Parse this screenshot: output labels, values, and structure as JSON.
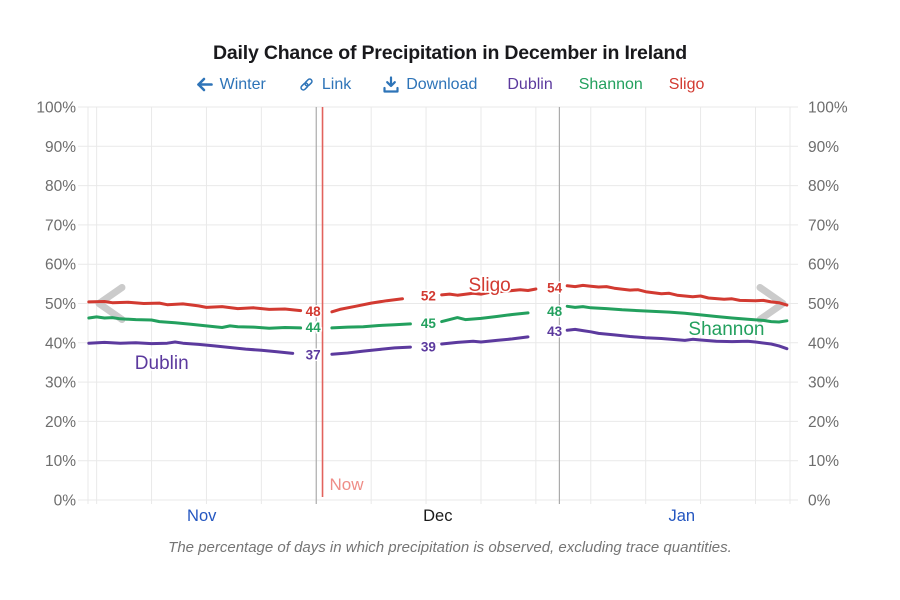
{
  "title": "Daily Chance of Precipitation in December in Ireland",
  "toolbar": {
    "back_label": "Winter",
    "link_label": "Link",
    "download_label": "Download"
  },
  "legend": [
    {
      "label": "Dublin",
      "color": "#5c3a9e"
    },
    {
      "label": "Shannon",
      "color": "#23a05e"
    },
    {
      "label": "Sligo",
      "color": "#d23a31"
    }
  ],
  "caption": "The percentage of days in which precipitation is observed, excluding trace quantities.",
  "colors": {
    "link_blue": "#2e74b8",
    "month_link_blue": "#2456c0",
    "month_current": "#1b1b1b",
    "now_label": "#ef8d87",
    "now_line": "#e2625d",
    "grid": "#e9e9e9",
    "month_divider": "#ababab",
    "axis_text": "#6d6d6d",
    "chevron": "#cbcbcb"
  },
  "chart_data": {
    "type": "line",
    "title": "Daily Chance of Precipitation in December in Ireland",
    "x_unit": "days relative to Dec 1",
    "xlim": [
      -29.1,
      60.4
    ],
    "ylim": [
      0,
      100
    ],
    "grid": true,
    "y_ticks": [
      {
        "value": 0,
        "label": "0%"
      },
      {
        "value": 10,
        "label": "10%"
      },
      {
        "value": 20,
        "label": "20%"
      },
      {
        "value": 30,
        "label": "30%"
      },
      {
        "value": 40,
        "label": "40%"
      },
      {
        "value": 50,
        "label": "50%"
      },
      {
        "value": 60,
        "label": "60%"
      },
      {
        "value": 70,
        "label": "70%"
      },
      {
        "value": 80,
        "label": "80%"
      },
      {
        "value": 90,
        "label": "90%"
      },
      {
        "value": 100,
        "label": "100%"
      }
    ],
    "week_gridline_days": [
      -28,
      -21,
      -14,
      -7,
      7,
      14,
      21,
      28,
      35,
      42,
      49,
      56
    ],
    "month_divider_days": [
      0,
      31
    ],
    "now": {
      "day": 0.8,
      "label": "Now"
    },
    "months": [
      {
        "label": "Nov",
        "center_day": -14.6,
        "is_link": true
      },
      {
        "label": "Dec",
        "center_day": 15.5,
        "is_link": false
      },
      {
        "label": "Jan",
        "center_day": 46.6,
        "is_link": true
      }
    ],
    "series": [
      {
        "name": "Sligo",
        "color": "#d23a31",
        "inline_label": {
          "text": "Sligo",
          "day": 22.1,
          "value": 53.2
        },
        "value_labels": [
          {
            "day": -0.4,
            "value": 48,
            "text": "48"
          },
          {
            "day": 14.3,
            "value": 52,
            "text": "52"
          },
          {
            "day": 30.4,
            "value": 54,
            "text": "54"
          }
        ],
        "points": [
          [
            -29,
            50.4
          ],
          [
            -27,
            50.5
          ],
          [
            -26,
            50.2
          ],
          [
            -24,
            50.3
          ],
          [
            -22,
            50.0
          ],
          [
            -20,
            50.1
          ],
          [
            -19,
            49.7
          ],
          [
            -17,
            49.9
          ],
          [
            -15,
            49.4
          ],
          [
            -14,
            49.0
          ],
          [
            -12,
            49.2
          ],
          [
            -10,
            48.7
          ],
          [
            -8,
            48.9
          ],
          [
            -6,
            48.5
          ],
          [
            -4,
            48.6
          ],
          [
            -2,
            48.2
          ],
          [
            -1,
            48.0
          ],
          [
            0,
            48.0
          ],
          [
            1,
            47.6
          ],
          [
            2,
            47.9
          ],
          [
            3,
            48.5
          ],
          [
            5,
            49.3
          ],
          [
            7,
            50.1
          ],
          [
            9,
            50.7
          ],
          [
            11,
            51.2
          ],
          [
            13,
            51.6
          ],
          [
            14,
            51.9
          ],
          [
            16,
            52.2
          ],
          [
            17,
            52.4
          ],
          [
            18,
            52.1
          ],
          [
            20,
            52.6
          ],
          [
            21,
            52.4
          ],
          [
            22,
            52.8
          ],
          [
            24,
            53.1
          ],
          [
            26,
            53.5
          ],
          [
            27,
            53.3
          ],
          [
            28,
            53.7
          ],
          [
            30,
            54.0
          ],
          [
            31,
            54.1
          ],
          [
            32,
            54.5
          ],
          [
            33,
            54.3
          ],
          [
            34,
            54.6
          ],
          [
            35,
            54.4
          ],
          [
            36,
            54.2
          ],
          [
            37,
            54.3
          ],
          [
            38,
            53.9
          ],
          [
            40,
            53.4
          ],
          [
            41,
            53.5
          ],
          [
            42,
            53.0
          ],
          [
            44,
            52.5
          ],
          [
            45,
            52.6
          ],
          [
            46,
            52.1
          ],
          [
            48,
            51.7
          ],
          [
            49,
            51.9
          ],
          [
            50,
            51.4
          ],
          [
            52,
            51.1
          ],
          [
            53,
            51.2
          ],
          [
            54,
            50.8
          ],
          [
            56,
            50.7
          ],
          [
            57,
            50.8
          ],
          [
            58,
            50.4
          ],
          [
            59,
            50.2
          ],
          [
            60,
            49.6
          ]
        ]
      },
      {
        "name": "Shannon",
        "color": "#23a05e",
        "inline_label": {
          "text": "Shannon",
          "day": 52.3,
          "value": 42.0
        },
        "value_labels": [
          {
            "day": -0.4,
            "value": 44,
            "text": "44"
          },
          {
            "day": 14.3,
            "value": 45,
            "text": "45"
          },
          {
            "day": 30.4,
            "value": 48,
            "text": "48"
          }
        ],
        "points": [
          [
            -29,
            46.3
          ],
          [
            -28,
            46.6
          ],
          [
            -27,
            46.3
          ],
          [
            -26,
            46.4
          ],
          [
            -25,
            46.1
          ],
          [
            -23,
            45.9
          ],
          [
            -21,
            45.8
          ],
          [
            -20,
            45.4
          ],
          [
            -18,
            45.1
          ],
          [
            -16,
            44.7
          ],
          [
            -14,
            44.3
          ],
          [
            -12,
            43.9
          ],
          [
            -11,
            44.3
          ],
          [
            -10,
            44.1
          ],
          [
            -8,
            44.0
          ],
          [
            -6,
            43.7
          ],
          [
            -4,
            43.9
          ],
          [
            -2,
            43.8
          ],
          [
            0,
            44.0
          ],
          [
            1,
            43.6
          ],
          [
            2,
            43.8
          ],
          [
            4,
            44.0
          ],
          [
            6,
            44.1
          ],
          [
            8,
            44.4
          ],
          [
            10,
            44.6
          ],
          [
            12,
            44.8
          ],
          [
            14,
            45.0
          ],
          [
            16,
            45.4
          ],
          [
            17,
            45.9
          ],
          [
            18,
            46.4
          ],
          [
            19,
            45.9
          ],
          [
            21,
            46.2
          ],
          [
            23,
            46.7
          ],
          [
            25,
            47.2
          ],
          [
            27,
            47.6
          ],
          [
            29,
            47.9
          ],
          [
            30,
            48.1
          ],
          [
            31,
            48.7
          ],
          [
            32,
            49.3
          ],
          [
            33,
            49.0
          ],
          [
            34,
            49.2
          ],
          [
            35,
            48.9
          ],
          [
            37,
            48.7
          ],
          [
            39,
            48.4
          ],
          [
            41,
            48.2
          ],
          [
            43,
            48.0
          ],
          [
            45,
            47.8
          ],
          [
            47,
            47.5
          ],
          [
            49,
            47.1
          ],
          [
            51,
            46.7
          ],
          [
            53,
            46.3
          ],
          [
            55,
            46.0
          ],
          [
            57,
            45.7
          ],
          [
            58,
            45.4
          ],
          [
            59,
            45.3
          ],
          [
            60,
            45.6
          ]
        ]
      },
      {
        "name": "Dublin",
        "color": "#5c3a9e",
        "inline_label": {
          "text": "Dublin",
          "day": -19.7,
          "value": 33.3
        },
        "value_labels": [
          {
            "day": -0.4,
            "value": 37,
            "text": "37"
          },
          {
            "day": 14.3,
            "value": 39,
            "text": "39"
          },
          {
            "day": 30.4,
            "value": 43,
            "text": "43"
          }
        ],
        "points": [
          [
            -29,
            39.9
          ],
          [
            -27,
            40.1
          ],
          [
            -25,
            39.9
          ],
          [
            -23,
            40.0
          ],
          [
            -21,
            39.8
          ],
          [
            -19,
            39.9
          ],
          [
            -18,
            40.2
          ],
          [
            -17,
            39.9
          ],
          [
            -15,
            39.6
          ],
          [
            -13,
            39.2
          ],
          [
            -11,
            38.8
          ],
          [
            -9,
            38.4
          ],
          [
            -7,
            38.1
          ],
          [
            -5,
            37.7
          ],
          [
            -3,
            37.3
          ],
          [
            -1,
            37.1
          ],
          [
            0,
            37.0
          ],
          [
            1,
            36.9
          ],
          [
            2,
            37.1
          ],
          [
            4,
            37.4
          ],
          [
            6,
            37.9
          ],
          [
            8,
            38.3
          ],
          [
            10,
            38.7
          ],
          [
            12,
            38.9
          ],
          [
            14,
            39.2
          ],
          [
            16,
            39.7
          ],
          [
            18,
            40.1
          ],
          [
            20,
            40.4
          ],
          [
            21,
            40.2
          ],
          [
            23,
            40.6
          ],
          [
            25,
            41.0
          ],
          [
            27,
            41.5
          ],
          [
            29,
            42.1
          ],
          [
            30,
            42.5
          ],
          [
            31,
            43.0
          ],
          [
            32,
            43.2
          ],
          [
            33,
            43.4
          ],
          [
            34,
            43.1
          ],
          [
            35,
            42.8
          ],
          [
            36,
            42.4
          ],
          [
            38,
            42.0
          ],
          [
            40,
            41.6
          ],
          [
            42,
            41.3
          ],
          [
            44,
            41.1
          ],
          [
            46,
            40.8
          ],
          [
            47,
            40.6
          ],
          [
            48,
            40.9
          ],
          [
            49,
            40.7
          ],
          [
            51,
            40.4
          ],
          [
            53,
            40.3
          ],
          [
            55,
            40.4
          ],
          [
            56,
            40.2
          ],
          [
            58,
            39.7
          ],
          [
            59,
            39.2
          ],
          [
            60,
            38.5
          ]
        ]
      }
    ]
  }
}
